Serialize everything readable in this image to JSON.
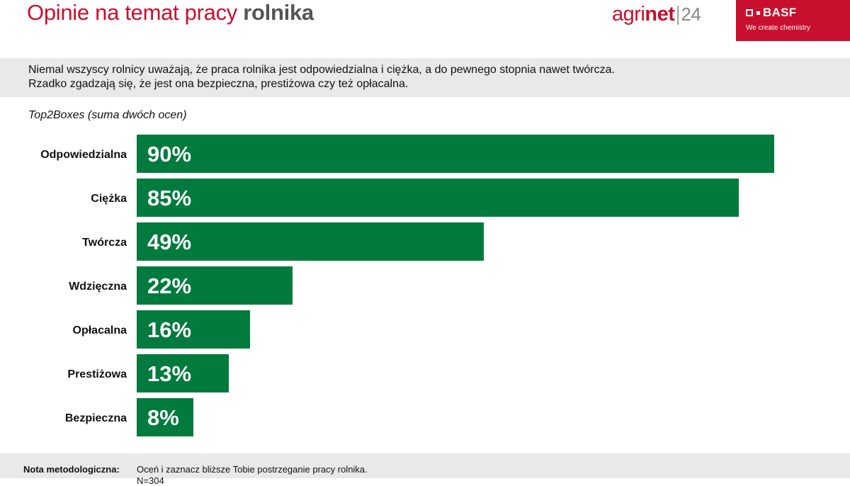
{
  "header": {
    "title_regular": "Opinie na temat pracy ",
    "title_bold": "rolnika",
    "agrinet": {
      "part1": "agri",
      "part2": "net",
      "separator": "|",
      "number": "24"
    },
    "basf": {
      "name": "BASF",
      "tagline": "We create chemistry"
    }
  },
  "intro": {
    "line1": "Niemal wszyscy rolnicy uważają, że praca rolnika jest odpowiedzialna i ciężka, a do pewnego stopnia nawet twórcza.",
    "line2": "Rzadko zgadzają się, że jest ona bezpieczna, prestiżowa czy też opłacalna."
  },
  "footer": {
    "label": "Nota metodologiczna:",
    "text": "Oceń i zaznacz bliższe Tobie postrzeganie pracy rolnika.",
    "text2": "N=304"
  },
  "colors": {
    "bar": "#007a3d",
    "brand": "#c8102e"
  },
  "chart_data": {
    "type": "bar",
    "orientation": "horizontal",
    "subtitle": "Top2Boxes (suma dwóch ocen)",
    "categories": [
      "Odpowiedzialna",
      "Ciężka",
      "Twórcza",
      "Wdzięczna",
      "Opłacalna",
      "Prestiżowa",
      "Bezpieczna"
    ],
    "values": [
      90,
      85,
      49,
      22,
      16,
      13,
      8
    ],
    "value_labels": [
      "90%",
      "85%",
      "49%",
      "22%",
      "16%",
      "13%",
      "8%"
    ],
    "xlim": [
      0,
      100
    ],
    "unit": "%",
    "grid": false,
    "legend": "none"
  }
}
